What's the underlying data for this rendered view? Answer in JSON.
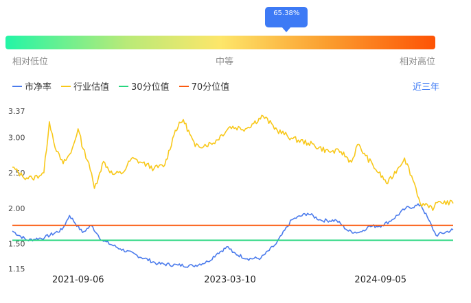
{
  "gauge": {
    "value_label": "65.38%",
    "value": 65.38,
    "low_label": "相对低位",
    "mid_label": "中等",
    "high_label": "相对高位"
  },
  "legend": {
    "pb_label": "市净率",
    "industry_label": "行业估值",
    "p30_label": "30分位值",
    "p70_label": "70分位值"
  },
  "period_label": "近三年",
  "colors": {
    "pb": "#4b7bec",
    "industry": "#f8c81a",
    "p30": "#27d67f",
    "p70": "#fb5a0f"
  },
  "chart_data": {
    "type": "line",
    "y_ticks": [
      "3.37",
      "3.00",
      "2.50",
      "2.00",
      "1.50",
      "1.15"
    ],
    "ylim": [
      1.15,
      3.37
    ],
    "x_ticks": [
      "2021-09-06",
      "2023-03-10",
      "2024-09-05"
    ],
    "x_range": [
      "2021-01-11",
      "2025-05-26"
    ],
    "p30": 1.55,
    "p70": 1.76,
    "series": [
      {
        "key": "pb",
        "name": "市净率",
        "x": [
          "2021-01-11",
          "2021-03-06",
          "2021-05-08",
          "2021-07-10",
          "2021-08-06",
          "2021-09-22",
          "2021-10-24",
          "2021-11-18",
          "2021-12-02",
          "2022-02-06",
          "2022-06-22",
          "2022-09-03",
          "2022-10-27",
          "2022-12-20",
          "2023-01-24",
          "2023-03-03",
          "2023-03-19",
          "2023-05-12",
          "2023-06-30",
          "2023-08-24",
          "2023-10-20",
          "2023-12-16",
          "2024-02-04",
          "2024-03-30",
          "2024-05-12",
          "2024-06-19",
          "2024-07-04",
          "2024-07-21",
          "2024-09-11",
          "2024-10-17",
          "2024-12-05",
          "2025-01-29",
          "2025-02-26",
          "2025-03-25",
          "2025-05-26"
        ],
        "values": [
          1.68,
          1.55,
          1.59,
          1.7,
          1.9,
          1.66,
          1.76,
          1.62,
          1.55,
          1.43,
          1.22,
          1.2,
          1.19,
          1.25,
          1.37,
          1.46,
          1.38,
          1.29,
          1.3,
          1.5,
          1.84,
          1.93,
          1.83,
          1.83,
          1.68,
          1.66,
          1.69,
          1.74,
          1.76,
          1.84,
          2.0,
          2.05,
          1.84,
          1.62,
          1.7
        ]
      },
      {
        "key": "industry",
        "name": "行业估值",
        "x": [
          "2021-01-11",
          "2021-02-17",
          "2021-03-24",
          "2021-05-05",
          "2021-05-25",
          "2021-06-20",
          "2021-07-14",
          "2021-08-11",
          "2021-09-06",
          "2021-09-24",
          "2021-10-15",
          "2021-11-04",
          "2021-11-23",
          "2021-12-07",
          "2022-01-09",
          "2022-02-15",
          "2022-03-18",
          "2022-04-28",
          "2022-06-08",
          "2022-07-17",
          "2022-08-24",
          "2022-09-22",
          "2022-11-04",
          "2023-01-09",
          "2023-03-10",
          "2023-05-05",
          "2023-07-08",
          "2023-08-28",
          "2023-10-23",
          "2023-12-18",
          "2024-03-02",
          "2024-04-15",
          "2024-05-23",
          "2024-06-14",
          "2024-07-13",
          "2024-08-29",
          "2024-10-01",
          "2024-12-01",
          "2025-01-06",
          "2025-01-27",
          "2025-02-27",
          "2025-03-18",
          "2025-04-04",
          "2025-05-26"
        ],
        "values": [
          2.58,
          2.45,
          2.42,
          2.5,
          3.22,
          2.8,
          2.63,
          2.78,
          3.12,
          2.84,
          2.64,
          2.28,
          2.5,
          2.66,
          2.48,
          2.5,
          2.7,
          2.64,
          2.56,
          2.61,
          3.1,
          3.25,
          2.87,
          2.92,
          3.15,
          3.12,
          3.3,
          3.1,
          2.98,
          2.92,
          2.8,
          2.8,
          2.65,
          2.9,
          2.74,
          2.5,
          2.35,
          2.71,
          2.35,
          2.07,
          2.01,
          2.01,
          2.1,
          2.07
        ]
      }
    ]
  }
}
